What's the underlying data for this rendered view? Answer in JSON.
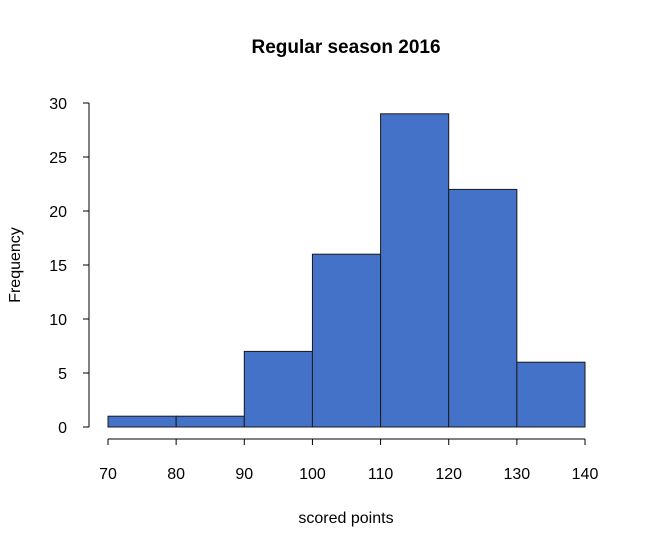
{
  "chart_data": {
    "type": "bar",
    "title": "Regular season 2016",
    "xlabel": "scored points",
    "ylabel": "Frequency",
    "bins": [
      {
        "from": 70,
        "to": 80,
        "count": 1
      },
      {
        "from": 80,
        "to": 90,
        "count": 1
      },
      {
        "from": 90,
        "to": 100,
        "count": 7
      },
      {
        "from": 100,
        "to": 110,
        "count": 16
      },
      {
        "from": 110,
        "to": 120,
        "count": 29
      },
      {
        "from": 120,
        "to": 130,
        "count": 22
      },
      {
        "from": 130,
        "to": 140,
        "count": 6
      }
    ],
    "xlim": [
      70,
      140
    ],
    "ylim": [
      0,
      30
    ],
    "xticks": [
      70,
      80,
      90,
      100,
      110,
      120,
      130,
      140
    ],
    "yticks": [
      0,
      5,
      10,
      15,
      20,
      25,
      30
    ],
    "bar_color": "#4472C8",
    "grid": false,
    "legend": "none"
  }
}
